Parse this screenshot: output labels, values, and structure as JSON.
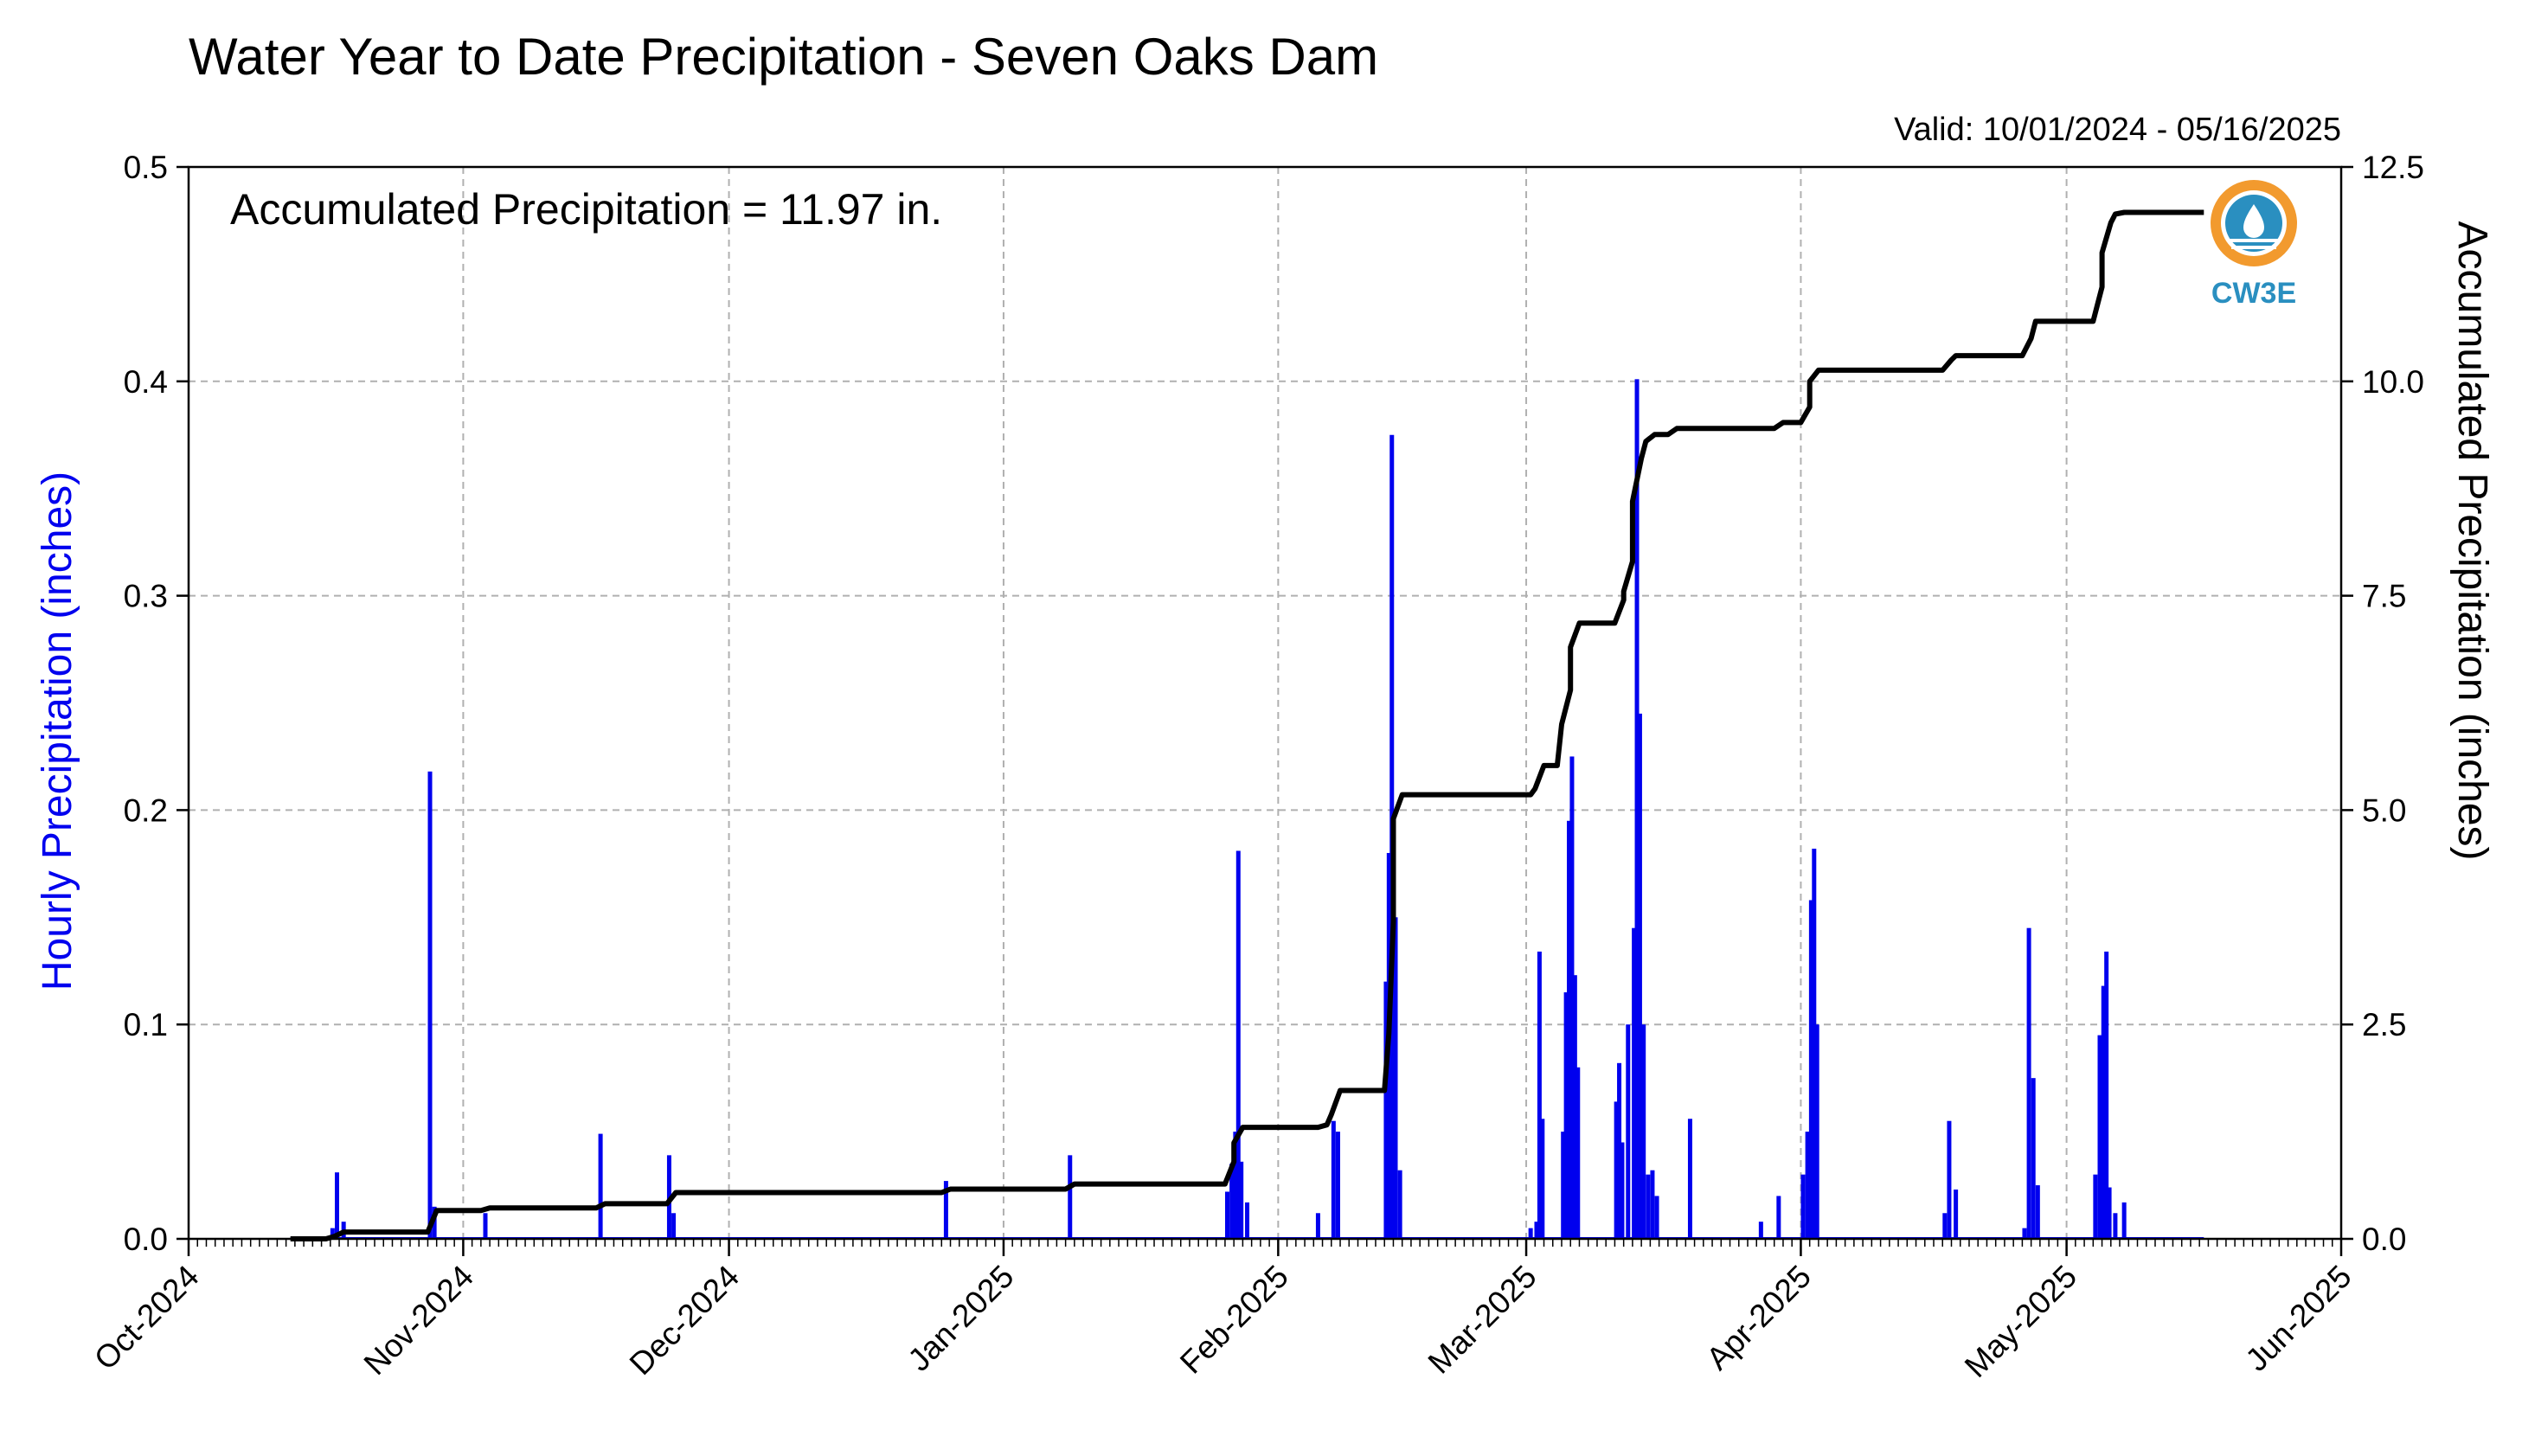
{
  "chart_data": {
    "type": "bar+line",
    "title": "Water Year to Date Precipitation - Seven Oaks Dam",
    "subtitle": "Valid: 10/01/2024 - 05/16/2025",
    "annotation": "Accumulated Precipitation = 11.97 in.",
    "ylabel_left": "Hourly Precipitation (inches)",
    "ylabel_right": "Accumulated Precipitation (inches)",
    "ylim_left": [
      0,
      0.5
    ],
    "ylim_right": [
      0,
      12.5
    ],
    "xlim": [
      "2024-10-01",
      "2025-06-01"
    ],
    "grid": true,
    "colors": {
      "bars": "#0000ee",
      "line": "#000000",
      "grid": "#b0b0b0",
      "logo_orange": "#f29a2e",
      "logo_blue": "#2a8fc0"
    },
    "x_tick_labels": [
      "Oct-2024",
      "Nov-2024",
      "Dec-2024",
      "Jan-2025",
      "Feb-2025",
      "Mar-2025",
      "Apr-2025",
      "May-2025",
      "Jun-2025"
    ],
    "x_tick_dates": [
      "2024-10-01",
      "2024-11-01",
      "2024-12-01",
      "2025-01-01",
      "2025-02-01",
      "2025-03-01",
      "2025-04-01",
      "2025-05-01",
      "2025-06-01"
    ],
    "y_left_ticks": [
      "0.0",
      "0.1",
      "0.2",
      "0.3",
      "0.4",
      "0.5"
    ],
    "y_right_ticks": [
      "0.0",
      "2.5",
      "5.0",
      "7.5",
      "10.0",
      "12.5"
    ],
    "hourly_precip": [
      {
        "date": "2024-10-17",
        "value": 0.005
      },
      {
        "date": "2024-10-17",
        "value": 0.031
      },
      {
        "date": "2024-10-18",
        "value": 0.008
      },
      {
        "date": "2024-10-28",
        "value": 0.218
      },
      {
        "date": "2024-10-28",
        "value": 0.015
      },
      {
        "date": "2024-11-03",
        "value": 0.012
      },
      {
        "date": "2024-11-16",
        "value": 0.049
      },
      {
        "date": "2024-11-24",
        "value": 0.039
      },
      {
        "date": "2024-11-24",
        "value": 0.012
      },
      {
        "date": "2024-12-25",
        "value": 0.027
      },
      {
        "date": "2025-01-08",
        "value": 0.039
      },
      {
        "date": "2025-01-26",
        "value": 0.022
      },
      {
        "date": "2025-01-26",
        "value": 0.035
      },
      {
        "date": "2025-01-27",
        "value": 0.05
      },
      {
        "date": "2025-01-27",
        "value": 0.181
      },
      {
        "date": "2025-01-27",
        "value": 0.036
      },
      {
        "date": "2025-01-28",
        "value": 0.017
      },
      {
        "date": "2025-02-05",
        "value": 0.012
      },
      {
        "date": "2025-02-07",
        "value": 0.055
      },
      {
        "date": "2025-02-07",
        "value": 0.05
      },
      {
        "date": "2025-02-13",
        "value": 0.12
      },
      {
        "date": "2025-02-13",
        "value": 0.18
      },
      {
        "date": "2025-02-13",
        "value": 0.375
      },
      {
        "date": "2025-02-14",
        "value": 0.15
      },
      {
        "date": "2025-02-14",
        "value": 0.032
      },
      {
        "date": "2025-03-01",
        "value": 0.005
      },
      {
        "date": "2025-03-02",
        "value": 0.008
      },
      {
        "date": "2025-03-02",
        "value": 0.134
      },
      {
        "date": "2025-03-02",
        "value": 0.056
      },
      {
        "date": "2025-03-05",
        "value": 0.05
      },
      {
        "date": "2025-03-05",
        "value": 0.115
      },
      {
        "date": "2025-03-05",
        "value": 0.195
      },
      {
        "date": "2025-03-06",
        "value": 0.225
      },
      {
        "date": "2025-03-06",
        "value": 0.123
      },
      {
        "date": "2025-03-06",
        "value": 0.08
      },
      {
        "date": "2025-03-11",
        "value": 0.064
      },
      {
        "date": "2025-03-11",
        "value": 0.082
      },
      {
        "date": "2025-03-11",
        "value": 0.045
      },
      {
        "date": "2025-03-12",
        "value": 0.1
      },
      {
        "date": "2025-03-13",
        "value": 0.145
      },
      {
        "date": "2025-03-13",
        "value": 0.401
      },
      {
        "date": "2025-03-13",
        "value": 0.245
      },
      {
        "date": "2025-03-14",
        "value": 0.1
      },
      {
        "date": "2025-03-14",
        "value": 0.03
      },
      {
        "date": "2025-03-15",
        "value": 0.032
      },
      {
        "date": "2025-03-15",
        "value": 0.02
      },
      {
        "date": "2025-03-19",
        "value": 0.056
      },
      {
        "date": "2025-03-27",
        "value": 0.008
      },
      {
        "date": "2025-03-29",
        "value": 0.02
      },
      {
        "date": "2025-04-01",
        "value": 0.03
      },
      {
        "date": "2025-04-01",
        "value": 0.05
      },
      {
        "date": "2025-04-02",
        "value": 0.158
      },
      {
        "date": "2025-04-02",
        "value": 0.182
      },
      {
        "date": "2025-04-02",
        "value": 0.1
      },
      {
        "date": "2025-04-17",
        "value": 0.012
      },
      {
        "date": "2025-04-17",
        "value": 0.055
      },
      {
        "date": "2025-04-18",
        "value": 0.023
      },
      {
        "date": "2025-04-26",
        "value": 0.005
      },
      {
        "date": "2025-04-26",
        "value": 0.145
      },
      {
        "date": "2025-04-27",
        "value": 0.075
      },
      {
        "date": "2025-04-27",
        "value": 0.025
      },
      {
        "date": "2025-05-04",
        "value": 0.03
      },
      {
        "date": "2025-05-04",
        "value": 0.095
      },
      {
        "date": "2025-05-05",
        "value": 0.118
      },
      {
        "date": "2025-05-05",
        "value": 0.134
      },
      {
        "date": "2025-05-05",
        "value": 0.024
      },
      {
        "date": "2025-05-06",
        "value": 0.012
      },
      {
        "date": "2025-05-07",
        "value": 0.017
      }
    ],
    "accumulated_precip": [
      {
        "date": "2024-10-12",
        "value": 0.0
      },
      {
        "date": "2024-10-16",
        "value": 0.0
      },
      {
        "date": "2024-10-17",
        "value": 0.03
      },
      {
        "date": "2024-10-18",
        "value": 0.08
      },
      {
        "date": "2024-10-28",
        "value": 0.08
      },
      {
        "date": "2024-10-28",
        "value": 0.33
      },
      {
        "date": "2024-11-03",
        "value": 0.33
      },
      {
        "date": "2024-11-03",
        "value": 0.36
      },
      {
        "date": "2024-11-16",
        "value": 0.36
      },
      {
        "date": "2024-11-16",
        "value": 0.41
      },
      {
        "date": "2024-11-24",
        "value": 0.41
      },
      {
        "date": "2024-11-24",
        "value": 0.54
      },
      {
        "date": "2024-12-25",
        "value": 0.54
      },
      {
        "date": "2024-12-25",
        "value": 0.58
      },
      {
        "date": "2025-01-08",
        "value": 0.58
      },
      {
        "date": "2025-01-08",
        "value": 0.64
      },
      {
        "date": "2025-01-26",
        "value": 0.64
      },
      {
        "date": "2025-01-26",
        "value": 0.9
      },
      {
        "date": "2025-01-27",
        "value": 1.12
      },
      {
        "date": "2025-01-27",
        "value": 1.3
      },
      {
        "date": "2025-02-05",
        "value": 1.3
      },
      {
        "date": "2025-02-06",
        "value": 1.33
      },
      {
        "date": "2025-02-07",
        "value": 1.45
      },
      {
        "date": "2025-02-07",
        "value": 1.73
      },
      {
        "date": "2025-02-13",
        "value": 1.73
      },
      {
        "date": "2025-02-13",
        "value": 2.4
      },
      {
        "date": "2025-02-13",
        "value": 3.7
      },
      {
        "date": "2025-02-14",
        "value": 4.9
      },
      {
        "date": "2025-02-14",
        "value": 5.18
      },
      {
        "date": "2025-03-01",
        "value": 5.18
      },
      {
        "date": "2025-03-02",
        "value": 5.25
      },
      {
        "date": "2025-03-02",
        "value": 5.52
      },
      {
        "date": "2025-03-04",
        "value": 5.52
      },
      {
        "date": "2025-03-05",
        "value": 6.0
      },
      {
        "date": "2025-03-05",
        "value": 6.4
      },
      {
        "date": "2025-03-06",
        "value": 6.9
      },
      {
        "date": "2025-03-06",
        "value": 7.18
      },
      {
        "date": "2025-03-11",
        "value": 7.18
      },
      {
        "date": "2025-03-11",
        "value": 7.45
      },
      {
        "date": "2025-03-12",
        "value": 7.55
      },
      {
        "date": "2025-03-12",
        "value": 7.9
      },
      {
        "date": "2025-03-13",
        "value": 8.6
      },
      {
        "date": "2025-03-13",
        "value": 9.1
      },
      {
        "date": "2025-03-14",
        "value": 9.3
      },
      {
        "date": "2025-03-15",
        "value": 9.38
      },
      {
        "date": "2025-03-17",
        "value": 9.38
      },
      {
        "date": "2025-03-17",
        "value": 9.45
      },
      {
        "date": "2025-03-29",
        "value": 9.45
      },
      {
        "date": "2025-03-29",
        "value": 9.52
      },
      {
        "date": "2025-04-01",
        "value": 9.52
      },
      {
        "date": "2025-04-01",
        "value": 9.7
      },
      {
        "date": "2025-04-02",
        "value": 10.0
      },
      {
        "date": "2025-04-02",
        "value": 10.13
      },
      {
        "date": "2025-04-17",
        "value": 10.13
      },
      {
        "date": "2025-04-17",
        "value": 10.25
      },
      {
        "date": "2025-04-18",
        "value": 10.3
      },
      {
        "date": "2025-04-26",
        "value": 10.3
      },
      {
        "date": "2025-04-26",
        "value": 10.5
      },
      {
        "date": "2025-04-27",
        "value": 10.7
      },
      {
        "date": "2025-05-04",
        "value": 10.7
      },
      {
        "date": "2025-05-04",
        "value": 11.1
      },
      {
        "date": "2025-05-05",
        "value": 11.5
      },
      {
        "date": "2025-05-05",
        "value": 11.85
      },
      {
        "date": "2025-05-06",
        "value": 11.95
      },
      {
        "date": "2025-05-07",
        "value": 11.97
      },
      {
        "date": "2025-05-16",
        "value": 11.97
      }
    ],
    "zero_baseline_range": [
      "2024-10-12",
      "2025-05-16"
    ],
    "logo": {
      "text": "CW3E",
      "name": "cw3e-logo"
    }
  }
}
